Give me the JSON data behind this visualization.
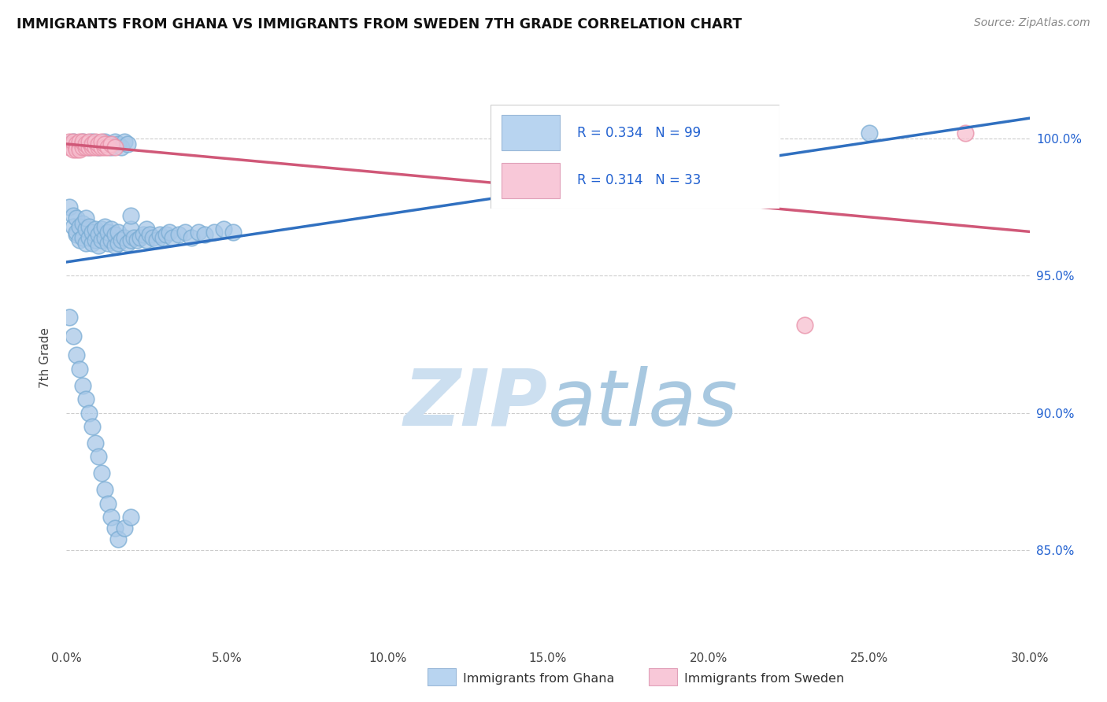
{
  "title": "IMMIGRANTS FROM GHANA VS IMMIGRANTS FROM SWEDEN 7TH GRADE CORRELATION CHART",
  "source": "Source: ZipAtlas.com",
  "ylabel_label": "7th Grade",
  "x_min": 0.0,
  "x_max": 0.3,
  "y_min": 0.815,
  "y_max": 1.025,
  "y_ticks": [
    0.85,
    0.9,
    0.95,
    1.0
  ],
  "y_tick_labels": [
    "85.0%",
    "90.0%",
    "95.0%",
    "100.0%"
  ],
  "x_ticks": [
    0.0,
    0.05,
    0.1,
    0.15,
    0.2,
    0.25,
    0.3
  ],
  "ghana_R": 0.334,
  "ghana_N": 99,
  "sweden_R": 0.314,
  "sweden_N": 33,
  "ghana_color": "#a8c8e8",
  "ghana_edge_color": "#7badd4",
  "sweden_color": "#f8c0d0",
  "sweden_edge_color": "#e890a8",
  "ghana_line_color": "#3070c0",
  "sweden_line_color": "#d05878",
  "legend_ghana_fill": "#b8d4f0",
  "legend_sweden_fill": "#f8c8d8",
  "watermark_zip_color": "#ccdff0",
  "watermark_atlas_color": "#a8c8e0",
  "ghana_x": [
    0.001,
    0.002,
    0.002,
    0.003,
    0.003,
    0.003,
    0.004,
    0.004,
    0.005,
    0.005,
    0.006,
    0.006,
    0.006,
    0.007,
    0.007,
    0.008,
    0.008,
    0.009,
    0.009,
    0.01,
    0.01,
    0.011,
    0.011,
    0.012,
    0.012,
    0.013,
    0.013,
    0.014,
    0.014,
    0.015,
    0.015,
    0.016,
    0.016,
    0.017,
    0.018,
    0.019,
    0.02,
    0.02,
    0.021,
    0.022,
    0.023,
    0.024,
    0.025,
    0.025,
    0.026,
    0.027,
    0.028,
    0.029,
    0.03,
    0.031,
    0.032,
    0.033,
    0.035,
    0.037,
    0.039,
    0.041,
    0.043,
    0.046,
    0.049,
    0.052,
    0.001,
    0.002,
    0.003,
    0.004,
    0.005,
    0.006,
    0.007,
    0.008,
    0.009,
    0.01,
    0.011,
    0.012,
    0.013,
    0.014,
    0.015,
    0.016,
    0.017,
    0.018,
    0.019,
    0.02,
    0.001,
    0.002,
    0.003,
    0.004,
    0.005,
    0.006,
    0.007,
    0.008,
    0.009,
    0.01,
    0.011,
    0.012,
    0.013,
    0.014,
    0.015,
    0.016,
    0.018,
    0.02,
    0.25
  ],
  "ghana_y": [
    0.975,
    0.972,
    0.968,
    0.965,
    0.971,
    0.966,
    0.968,
    0.963,
    0.969,
    0.964,
    0.962,
    0.967,
    0.971,
    0.964,
    0.968,
    0.962,
    0.966,
    0.963,
    0.967,
    0.961,
    0.965,
    0.963,
    0.967,
    0.964,
    0.968,
    0.962,
    0.966,
    0.963,
    0.967,
    0.961,
    0.965,
    0.962,
    0.966,
    0.963,
    0.964,
    0.962,
    0.963,
    0.967,
    0.964,
    0.963,
    0.964,
    0.965,
    0.963,
    0.967,
    0.965,
    0.964,
    0.963,
    0.965,
    0.964,
    0.965,
    0.966,
    0.964,
    0.965,
    0.966,
    0.964,
    0.966,
    0.965,
    0.966,
    0.967,
    0.966,
    0.998,
    0.999,
    0.998,
    0.997,
    0.999,
    0.998,
    0.997,
    0.999,
    0.998,
    0.997,
    0.998,
    0.999,
    0.998,
    0.997,
    0.999,
    0.998,
    0.997,
    0.999,
    0.998,
    0.972,
    0.935,
    0.928,
    0.921,
    0.916,
    0.91,
    0.905,
    0.9,
    0.895,
    0.889,
    0.884,
    0.878,
    0.872,
    0.867,
    0.862,
    0.858,
    0.854,
    0.858,
    0.862,
    1.002
  ],
  "sweden_x": [
    0.001,
    0.001,
    0.002,
    0.002,
    0.002,
    0.003,
    0.003,
    0.003,
    0.004,
    0.004,
    0.004,
    0.005,
    0.005,
    0.005,
    0.006,
    0.006,
    0.007,
    0.007,
    0.008,
    0.008,
    0.009,
    0.009,
    0.01,
    0.01,
    0.011,
    0.011,
    0.012,
    0.012,
    0.013,
    0.014,
    0.015,
    0.28,
    0.23
  ],
  "sweden_y": [
    0.999,
    0.997,
    0.998,
    0.996,
    0.999,
    0.997,
    0.998,
    0.996,
    0.997,
    0.999,
    0.996,
    0.998,
    0.997,
    0.999,
    0.997,
    0.998,
    0.997,
    0.999,
    0.997,
    0.998,
    0.997,
    0.999,
    0.997,
    0.998,
    0.997,
    0.999,
    0.997,
    0.998,
    0.997,
    0.998,
    0.997,
    1.002,
    0.932
  ]
}
